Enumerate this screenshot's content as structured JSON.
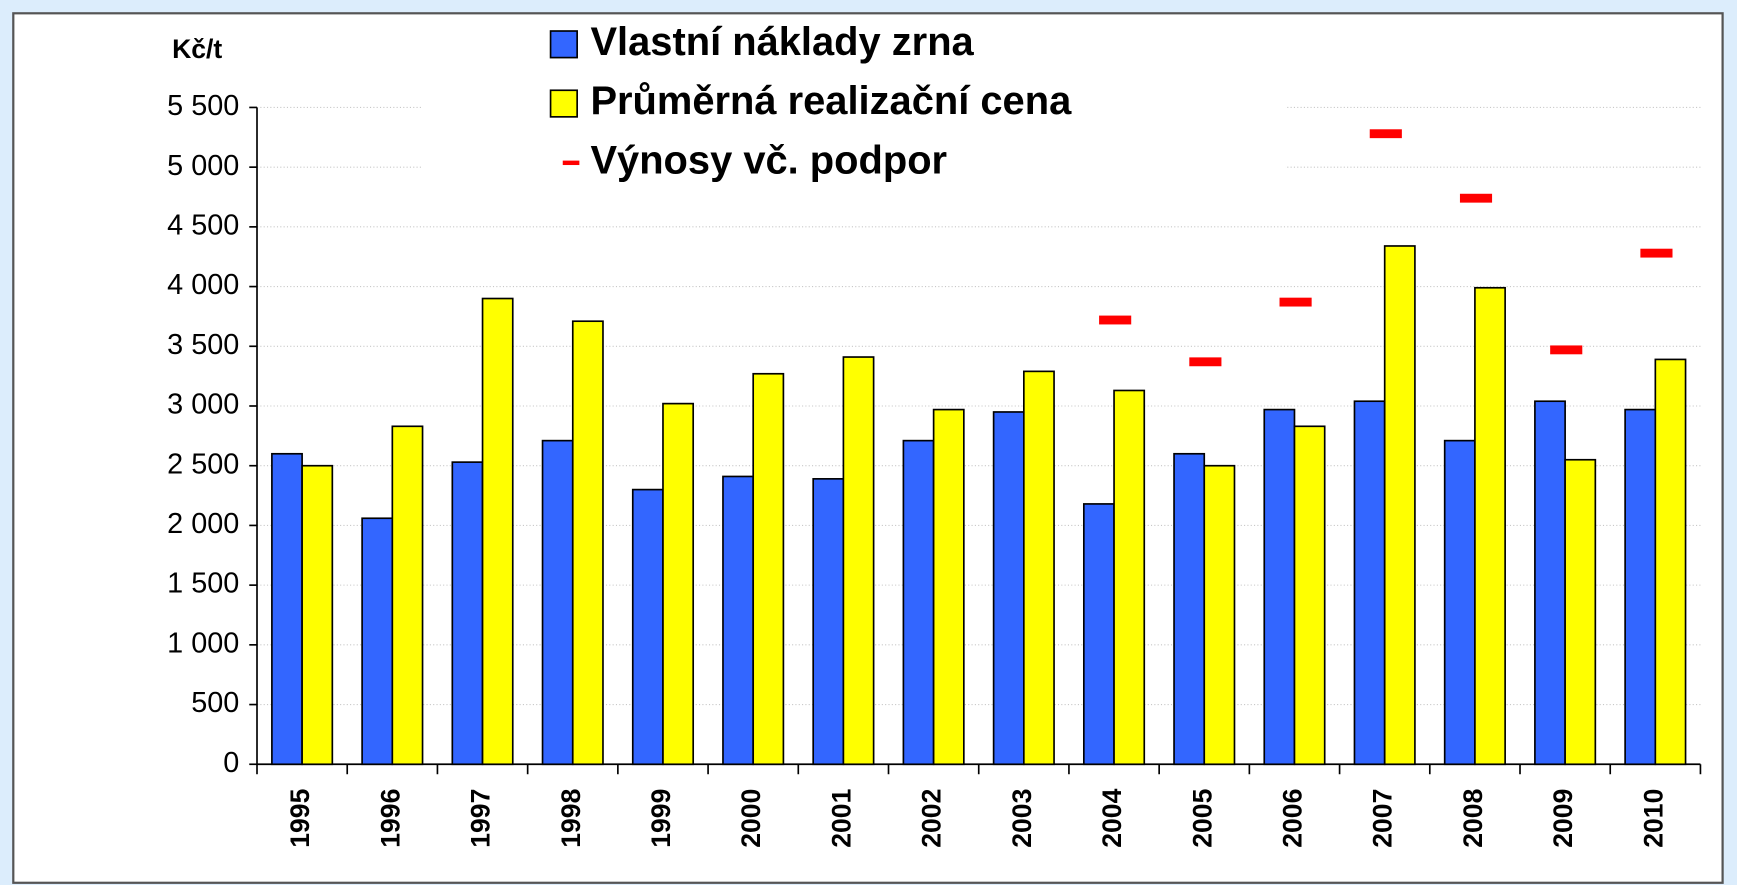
{
  "chart_data": {
    "type": "bar",
    "y_label": "Kč/t",
    "categories": [
      "1995",
      "1996",
      "1997",
      "1998",
      "1999",
      "2000",
      "2001",
      "2002",
      "2003",
      "2004",
      "2005",
      "2006",
      "2007",
      "2008",
      "2009",
      "2010"
    ],
    "series": [
      {
        "name": "Vlastní náklady zrna",
        "color": "#3366ff",
        "values": [
          2600,
          2060,
          2530,
          2710,
          2300,
          2410,
          2390,
          2710,
          2950,
          2180,
          2600,
          2970,
          3040,
          2710,
          3040,
          2970
        ]
      },
      {
        "name": "Průměrná realizační cena",
        "color": "#ffff00",
        "values": [
          2500,
          2830,
          3900,
          3710,
          3020,
          3270,
          3410,
          2970,
          3290,
          3130,
          2500,
          2830,
          4340,
          3990,
          2550,
          3390
        ]
      },
      {
        "name": "Výnosy vč. podpor",
        "color": "#ff0000",
        "mark": "dash",
        "values": [
          null,
          null,
          null,
          null,
          null,
          null,
          null,
          null,
          null,
          3720,
          3370,
          3870,
          5280,
          4740,
          3470,
          4280
        ]
      }
    ],
    "ylim": [
      0,
      5500
    ],
    "yticks": [
      0,
      500,
      {
        "value": 1000,
        "label": "1 000"
      },
      {
        "value": 1500,
        "label": "1 500"
      },
      {
        "value": 2000,
        "label": "2 000"
      },
      {
        "value": 2500,
        "label": "2 500"
      },
      {
        "value": 3000,
        "label": "3 000"
      },
      {
        "value": 3500,
        "label": "3 500"
      },
      {
        "value": 4000,
        "label": "4 000"
      },
      {
        "value": 4500,
        "label": "4 500"
      },
      {
        "value": 5000,
        "label": "5 000"
      },
      {
        "value": 5500,
        "label": "5 500"
      }
    ],
    "grid": true
  }
}
